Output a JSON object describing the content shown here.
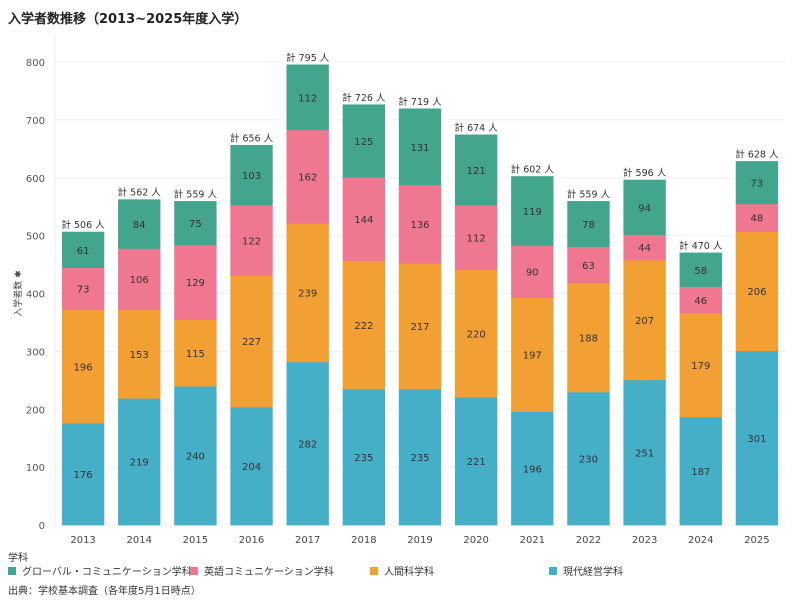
{
  "title": "入学者数推移（2013~2025年度入学）",
  "source": "出典：学校基本調査（各年度5月1日時点）",
  "chart_data": {
    "type": "bar",
    "stacked": true,
    "title": "入学者数推移（2013~2025年度入学）",
    "xlabel": "",
    "ylabel": "入学者数",
    "ylim": [
      0,
      800
    ],
    "yticks": [
      0,
      100,
      200,
      300,
      400,
      500,
      600,
      700,
      800
    ],
    "grid": true,
    "categories": [
      "2013",
      "2014",
      "2015",
      "2016",
      "2017",
      "2018",
      "2019",
      "2020",
      "2021",
      "2022",
      "2023",
      "2024",
      "2025"
    ],
    "series": [
      {
        "name": "現代経営学科",
        "color": "#45afc7",
        "values": [
          176,
          219,
          240,
          204,
          282,
          235,
          235,
          221,
          196,
          230,
          251,
          187,
          301
        ]
      },
      {
        "name": "人間科学科",
        "color": "#f29f33",
        "values": [
          196,
          153,
          115,
          227,
          239,
          222,
          217,
          220,
          197,
          188,
          207,
          179,
          206
        ]
      },
      {
        "name": "英語コミュニケーション学科",
        "color": "#f07790",
        "values": [
          73,
          106,
          129,
          122,
          162,
          144,
          136,
          112,
          90,
          63,
          44,
          46,
          48
        ]
      },
      {
        "name": "グローバル・コミュニケーション学科",
        "color": "#43a58e",
        "values": [
          61,
          84,
          75,
          103,
          112,
          125,
          131,
          121,
          119,
          78,
          94,
          58,
          73
        ]
      }
    ],
    "totals": [
      506,
      562,
      559,
      656,
      795,
      726,
      719,
      674,
      602,
      559,
      596,
      470,
      628
    ],
    "total_label_prefix": "計 ",
    "total_label_suffix": " 人",
    "legend": {
      "title": "学科",
      "placement": "bottom",
      "entries": [
        {
          "name": "グローバル・コミュニケーション学科",
          "color": "#43a58e"
        },
        {
          "name": "英語コミュニケーション学科",
          "color": "#f07790"
        },
        {
          "name": "人間科学科",
          "color": "#f29f33"
        },
        {
          "name": "現代経営学科",
          "color": "#45afc7"
        }
      ]
    }
  }
}
